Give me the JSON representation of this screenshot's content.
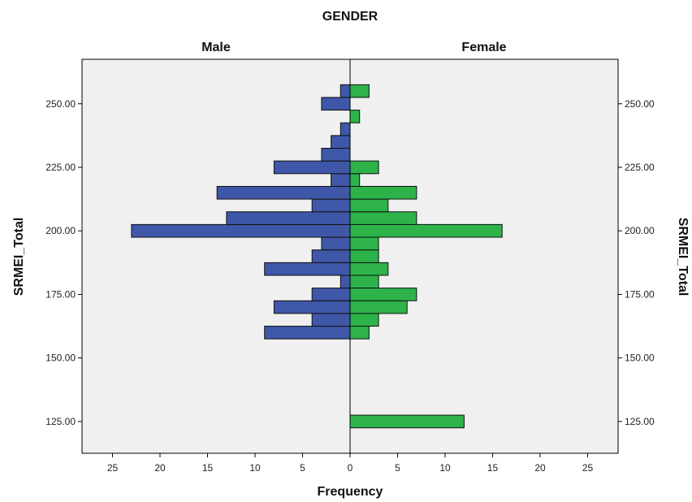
{
  "chart_data": {
    "type": "bar",
    "orientation": "horizontal-population-pyramid",
    "title": "GENDER",
    "panels": [
      "Male",
      "Female"
    ],
    "xlabel": "Frequency",
    "ylabel": "SRMEI_Total",
    "ylim": [
      112.5,
      267.5
    ],
    "y_ticks": [
      "125.00",
      "150.00",
      "175.00",
      "200.00",
      "225.00",
      "250.00"
    ],
    "x_ticks": [
      "25",
      "20",
      "15",
      "10",
      "5",
      "0",
      "5",
      "10",
      "15",
      "20",
      "25"
    ],
    "x_max": 28,
    "bin_width": 5,
    "grid": false,
    "colors": {
      "male": "#3f57a8",
      "female": "#2db34a",
      "plot_bg": "#f0f0f0",
      "border": "#000000"
    },
    "series": [
      {
        "name": "Male",
        "bins": [
          {
            "y": 160,
            "value": 9
          },
          {
            "y": 165,
            "value": 4
          },
          {
            "y": 170,
            "value": 8
          },
          {
            "y": 175,
            "value": 4
          },
          {
            "y": 180,
            "value": 1
          },
          {
            "y": 185,
            "value": 9
          },
          {
            "y": 190,
            "value": 4
          },
          {
            "y": 195,
            "value": 3
          },
          {
            "y": 200,
            "value": 23
          },
          {
            "y": 205,
            "value": 13
          },
          {
            "y": 210,
            "value": 4
          },
          {
            "y": 215,
            "value": 14
          },
          {
            "y": 220,
            "value": 2
          },
          {
            "y": 225,
            "value": 8
          },
          {
            "y": 230,
            "value": 3
          },
          {
            "y": 235,
            "value": 2
          },
          {
            "y": 240,
            "value": 1
          },
          {
            "y": 250,
            "value": 3
          },
          {
            "y": 255,
            "value": 1
          }
        ]
      },
      {
        "name": "Female",
        "bins": [
          {
            "y": 125,
            "value": 12
          },
          {
            "y": 160,
            "value": 2
          },
          {
            "y": 165,
            "value": 3
          },
          {
            "y": 170,
            "value": 6
          },
          {
            "y": 175,
            "value": 7
          },
          {
            "y": 180,
            "value": 3
          },
          {
            "y": 185,
            "value": 4
          },
          {
            "y": 190,
            "value": 3
          },
          {
            "y": 195,
            "value": 3
          },
          {
            "y": 200,
            "value": 16
          },
          {
            "y": 205,
            "value": 7
          },
          {
            "y": 210,
            "value": 4
          },
          {
            "y": 215,
            "value": 7
          },
          {
            "y": 220,
            "value": 1
          },
          {
            "y": 225,
            "value": 3
          },
          {
            "y": 245,
            "value": 1
          },
          {
            "y": 255,
            "value": 2
          }
        ]
      }
    ]
  }
}
